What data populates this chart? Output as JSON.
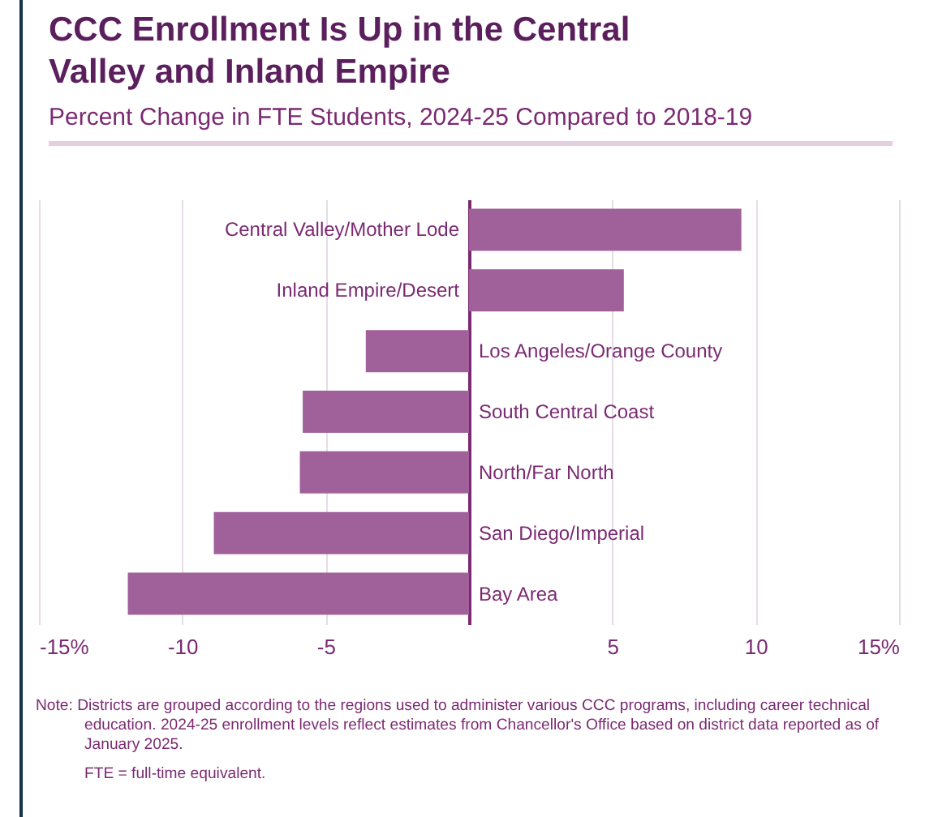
{
  "chart_data": {
    "type": "bar",
    "orientation": "horizontal",
    "title": "CCC Enrollment Is Up in the Central Valley and Inland Empire",
    "subtitle": "Percent Change in FTE Students, 2024-25 Compared to 2018-19",
    "categories": [
      "Central Valley/Mother Lode",
      "Inland Empire/Desert",
      "Los Angeles/Orange County",
      "South Central Coast",
      "North/Far North",
      "San Diego/Imperial",
      "Bay Area"
    ],
    "values": [
      9.5,
      5.4,
      -3.6,
      -5.8,
      -5.9,
      -8.9,
      -11.9
    ],
    "color": "#a0609a",
    "xlim": [
      -15,
      15
    ],
    "xticks": [
      {
        "value": -15,
        "label": "-15%"
      },
      -10,
      -5,
      {
        "value": 0,
        "label": null
      },
      5,
      10,
      {
        "value": 15,
        "label": "15%"
      }
    ],
    "grid": "x",
    "annotations": [
      "Note: Districts are grouped according to the regions used to administer various CCC programs, including career technical education. 2024-25 enrollment levels reflect estimates from Chancellor's Office based on district data reported as of January 2025.",
      "FTE = full-time equivalent."
    ]
  }
}
